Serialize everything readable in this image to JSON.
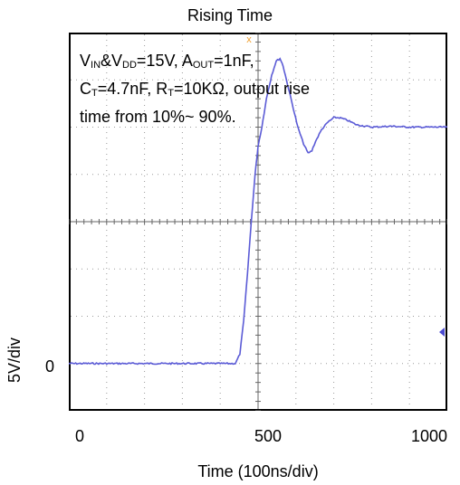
{
  "chart_data": {
    "type": "line",
    "title": "Rising Time",
    "xlabel": "Time (100ns/div)",
    "ylabel": "5V/div",
    "xlim": [
      0,
      1000
    ],
    "ylim": [
      -1,
      7
    ],
    "x_ticks": [
      "0",
      "500",
      "1000"
    ],
    "y_ticks": [
      "0"
    ],
    "grid": true,
    "annotation": {
      "line1": [
        "V",
        "IN",
        "&V",
        "DD",
        "=15V, A",
        "OUT",
        "=1nF,"
      ],
      "line2": [
        "C",
        "T",
        "=4.7nF, R",
        "T",
        "=10KΩ, output rise"
      ],
      "line3": "time from 10%~ 90%."
    },
    "series": [
      {
        "color": "#5b5bd6",
        "points": [
          [
            0,
            0
          ],
          [
            100,
            0
          ],
          [
            200,
            0
          ],
          [
            300,
            0
          ],
          [
            400,
            0
          ],
          [
            440,
            0
          ],
          [
            452,
            0.2
          ],
          [
            462,
            0.9
          ],
          [
            472,
            1.9
          ],
          [
            482,
            3.0
          ],
          [
            492,
            4.0
          ],
          [
            500,
            4.6
          ],
          [
            510,
            5.0
          ],
          [
            522,
            5.6
          ],
          [
            536,
            6.1
          ],
          [
            548,
            6.4
          ],
          [
            558,
            6.45
          ],
          [
            566,
            6.3
          ],
          [
            575,
            6.0
          ],
          [
            590,
            5.5
          ],
          [
            605,
            5.0
          ],
          [
            620,
            4.65
          ],
          [
            632,
            4.45
          ],
          [
            642,
            4.5
          ],
          [
            652,
            4.7
          ],
          [
            668,
            4.95
          ],
          [
            684,
            5.1
          ],
          [
            700,
            5.2
          ],
          [
            715,
            5.2
          ],
          [
            735,
            5.15
          ],
          [
            760,
            5.05
          ],
          [
            800,
            5.0
          ],
          [
            850,
            5.02
          ],
          [
            900,
            5.0
          ],
          [
            950,
            5.0
          ],
          [
            1000,
            5.0
          ]
        ]
      }
    ]
  }
}
